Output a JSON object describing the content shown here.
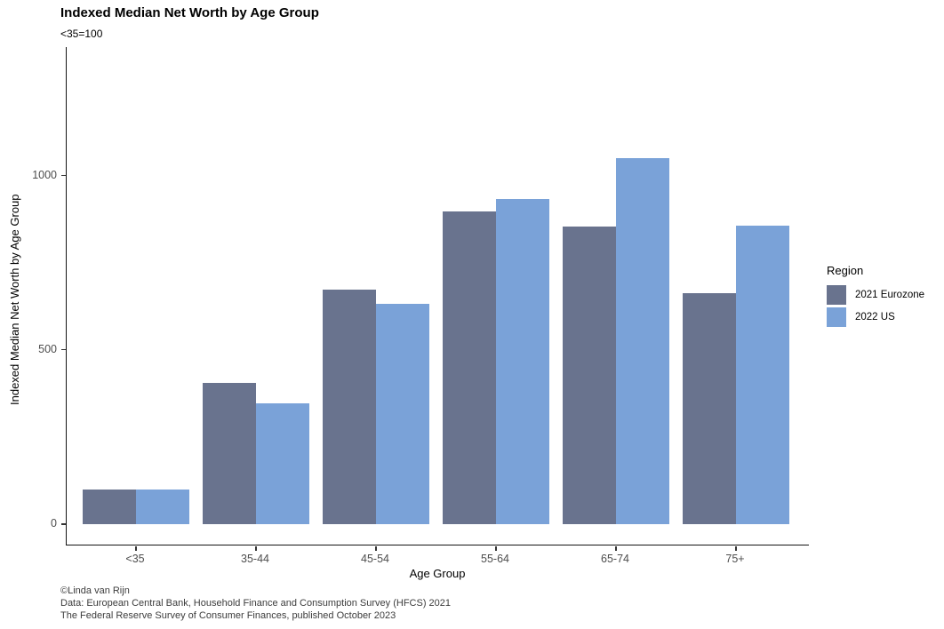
{
  "caption": {
    "line1": "©Linda van Rijn",
    "line2": "Data: European Central Bank, Household Finance and Consumption Survey (HFCS) 2021",
    "line3": "The Federal Reserve Survey of Consumer Finances, published October 2023"
  },
  "chart_data": {
    "type": "bar",
    "grouping": "dodged",
    "title": "Indexed Median Net Worth by Age Group",
    "subtitle": "<35=100",
    "xlabel": "Age Group",
    "ylabel": "Indexed Median Net Worth by Age Group",
    "legend_title": "Region",
    "legend_position": "right",
    "grid": false,
    "categories": [
      "<35",
      "35-44",
      "45-54",
      "55-64",
      "65-74",
      "75+"
    ],
    "series": [
      {
        "name": "2021 Eurozone",
        "color": "#69738E",
        "values": [
          100,
          404,
          673,
          898,
          853,
          662
        ]
      },
      {
        "name": "2022 US",
        "color": "#7AA2D8",
        "values": [
          100,
          347,
          632,
          933,
          1050,
          857
        ]
      }
    ],
    "ylim": [
      0,
      1360
    ],
    "yticks": [
      0,
      500,
      1000
    ]
  }
}
